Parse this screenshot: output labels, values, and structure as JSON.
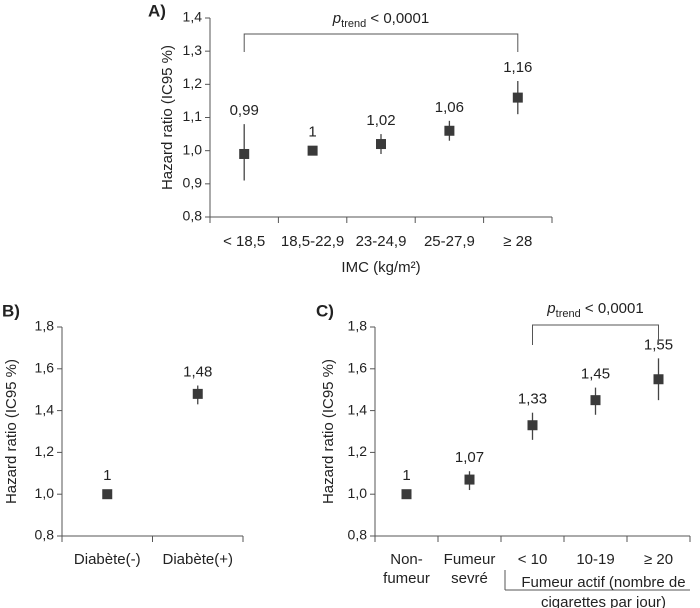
{
  "chart_data": [
    {
      "id": "A",
      "type": "scatter",
      "panel_label": "A)",
      "ylabel": "Hazard ratio (IC95 %)",
      "xlabel": "IMC (kg/m²)",
      "ylim": [
        0.8,
        1.4
      ],
      "yticks": [
        "0,8",
        "0,9",
        "1,0",
        "1,1",
        "1,2",
        "1,3",
        "1,4"
      ],
      "ytick_values": [
        0.8,
        0.9,
        1.0,
        1.1,
        1.2,
        1.3,
        1.4
      ],
      "categories": [
        "< 18,5",
        "18,5-22,9",
        "23-24,9",
        "25-27,9",
        "≥ 28"
      ],
      "values": [
        0.99,
        1.0,
        1.02,
        1.06,
        1.16
      ],
      "value_labels": [
        "0,99",
        "1",
        "1,02",
        "1,06",
        "1,16"
      ],
      "ci_low": [
        0.91,
        null,
        0.99,
        1.03,
        1.11
      ],
      "ci_high": [
        1.08,
        null,
        1.05,
        1.09,
        1.21
      ],
      "ptrend": {
        "p": "p",
        "sub": "trend",
        "rest": " < 0,0001",
        "from": 0,
        "to": 4
      },
      "grid": false
    },
    {
      "id": "B",
      "type": "scatter",
      "panel_label": "B)",
      "ylabel": "Hazard ratio (IC95 %)",
      "ylim": [
        0.8,
        1.8
      ],
      "yticks": [
        "0,8",
        "1,0",
        "1,2",
        "1,4",
        "1,6",
        "1,8"
      ],
      "ytick_values": [
        0.8,
        1.0,
        1.2,
        1.4,
        1.6,
        1.8
      ],
      "categories": [
        "Diabète(-)",
        "Diabète(+)"
      ],
      "values": [
        1.0,
        1.48
      ],
      "value_labels": [
        "1",
        "1,48"
      ],
      "ci_low": [
        null,
        1.43
      ],
      "ci_high": [
        null,
        1.52
      ],
      "grid": false
    },
    {
      "id": "C",
      "type": "scatter",
      "panel_label": "C)",
      "ylabel": "Hazard ratio (IC95 %)",
      "ylim": [
        0.8,
        1.8
      ],
      "yticks": [
        "0,8",
        "1,0",
        "1,2",
        "1,4",
        "1,6",
        "1,8"
      ],
      "ytick_values": [
        0.8,
        1.0,
        1.2,
        1.4,
        1.6,
        1.8
      ],
      "categories": [
        [
          "Non-",
          "fumeur"
        ],
        [
          "Fumeur",
          "sevré"
        ],
        [
          "< 10"
        ],
        [
          "10-19"
        ],
        [
          "≥ 20"
        ]
      ],
      "group_label": [
        "Fumeur actif (nombre de",
        "cigarettes par jour)"
      ],
      "values": [
        1.0,
        1.07,
        1.33,
        1.45,
        1.55
      ],
      "value_labels": [
        "1",
        "1,07",
        "1,33",
        "1,45",
        "1,55"
      ],
      "ci_low": [
        null,
        1.02,
        1.26,
        1.38,
        1.45
      ],
      "ci_high": [
        null,
        1.11,
        1.39,
        1.51,
        1.65
      ],
      "ptrend": {
        "p": "p",
        "sub": "trend",
        "rest": " < 0,0001",
        "from": 2,
        "to": 4
      },
      "grid": false
    }
  ]
}
